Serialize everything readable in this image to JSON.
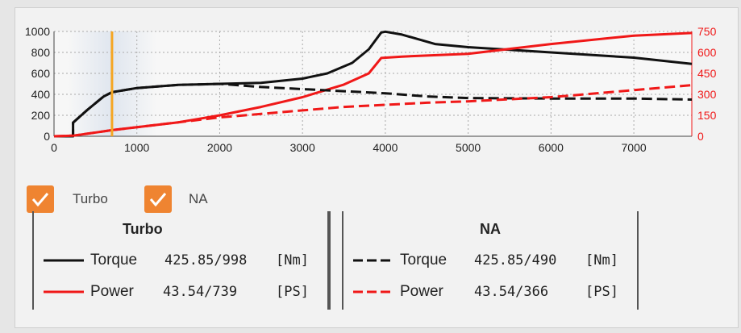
{
  "checkboxes": [
    {
      "label": "Turbo",
      "checked": true
    },
    {
      "label": "NA",
      "checked": true
    }
  ],
  "tables": {
    "turbo": {
      "title": "Turbo",
      "torque_label": "Torque",
      "torque_value": "425.85/998",
      "torque_unit": "[Nm]",
      "power_label": "Power",
      "power_value": "43.54/739",
      "power_unit": "[PS]"
    },
    "na": {
      "title": "NA",
      "torque_label": "Torque",
      "torque_value": "425.85/490",
      "torque_unit": "[Nm]",
      "power_label": "Power",
      "power_value": "43.54/366",
      "power_unit": "[PS]"
    }
  },
  "colors": {
    "torque": "#111111",
    "power": "#f01818",
    "cursor": "#f5a623",
    "accent": "#ef8431"
  },
  "chart_data": {
    "type": "line",
    "xlim": [
      0,
      7700
    ],
    "ylim_left": [
      0,
      1000
    ],
    "ylim_right": [
      0,
      750
    ],
    "x_ticks": [
      0,
      1000,
      2000,
      3000,
      4000,
      5000,
      6000,
      7000
    ],
    "y_left_ticks": [
      0,
      200,
      400,
      600,
      800,
      1000
    ],
    "y_right_ticks": [
      0,
      150,
      300,
      450,
      600,
      750
    ],
    "grid": true,
    "cursor_x": 700,
    "series": [
      {
        "axis": "left",
        "style": "solid",
        "color": "torque",
        "points": [
          [
            0,
            0
          ],
          [
            230,
            0
          ],
          [
            230,
            130
          ],
          [
            400,
            250
          ],
          [
            600,
            380
          ],
          [
            700,
            420
          ],
          [
            1000,
            460
          ],
          [
            1500,
            490
          ],
          [
            2000,
            500
          ],
          [
            2500,
            510
          ],
          [
            3000,
            550
          ],
          [
            3300,
            600
          ],
          [
            3600,
            700
          ],
          [
            3800,
            830
          ],
          [
            3950,
            990
          ],
          [
            4000,
            998
          ],
          [
            4200,
            970
          ],
          [
            4600,
            880
          ],
          [
            5000,
            850
          ],
          [
            6000,
            800
          ],
          [
            7000,
            750
          ],
          [
            7700,
            690
          ]
        ]
      },
      {
        "axis": "right",
        "style": "solid",
        "color": "power",
        "points": [
          [
            0,
            0
          ],
          [
            230,
            4
          ],
          [
            700,
            44
          ],
          [
            1500,
            100
          ],
          [
            2000,
            150
          ],
          [
            2500,
            210
          ],
          [
            3000,
            280
          ],
          [
            3500,
            370
          ],
          [
            3800,
            450
          ],
          [
            3950,
            560
          ],
          [
            4200,
            570
          ],
          [
            5000,
            590
          ],
          [
            6000,
            660
          ],
          [
            7000,
            720
          ],
          [
            7700,
            739
          ]
        ]
      },
      {
        "axis": "left",
        "style": "dashed",
        "color": "torque",
        "points": [
          [
            0,
            0
          ],
          [
            230,
            0
          ],
          [
            230,
            130
          ],
          [
            400,
            250
          ],
          [
            600,
            380
          ],
          [
            700,
            420
          ],
          [
            1000,
            460
          ],
          [
            1500,
            490
          ],
          [
            2000,
            500
          ],
          [
            2500,
            470
          ],
          [
            3000,
            450
          ],
          [
            3500,
            430
          ],
          [
            4000,
            410
          ],
          [
            4500,
            380
          ],
          [
            5000,
            365
          ],
          [
            6000,
            360
          ],
          [
            7000,
            360
          ],
          [
            7700,
            350
          ]
        ]
      },
      {
        "axis": "right",
        "style": "dashed",
        "color": "power",
        "points": [
          [
            0,
            0
          ],
          [
            230,
            4
          ],
          [
            700,
            44
          ],
          [
            1500,
            100
          ],
          [
            2000,
            135
          ],
          [
            2500,
            160
          ],
          [
            3000,
            185
          ],
          [
            3500,
            210
          ],
          [
            4000,
            225
          ],
          [
            4500,
            240
          ],
          [
            5000,
            250
          ],
          [
            6000,
            280
          ],
          [
            7000,
            330
          ],
          [
            7700,
            366
          ]
        ]
      }
    ]
  }
}
